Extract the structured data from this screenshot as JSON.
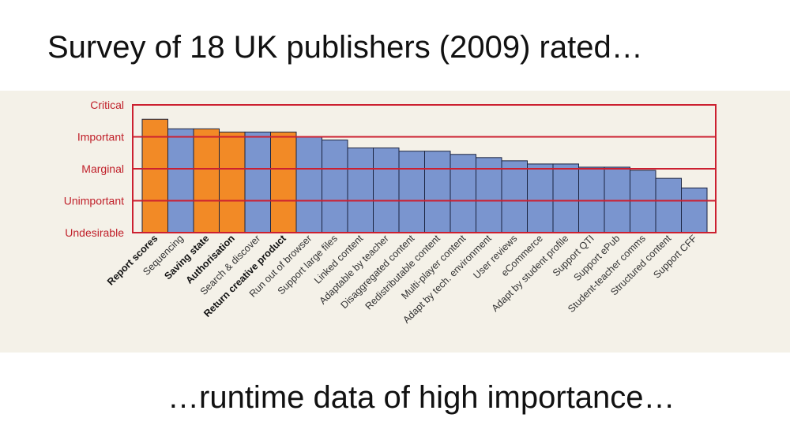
{
  "slide": {
    "title": "Survey of 18 UK publishers (2009) rated…",
    "footer": "…runtime data of high importance…"
  },
  "chart_data": {
    "type": "bar",
    "title": "",
    "xlabel": "",
    "ylabel": "",
    "ylim": [
      0,
      4
    ],
    "grid": true,
    "y_tick_labels": [
      "Undesirable",
      "Unimportant",
      "Marginal",
      "Important",
      "Critical"
    ],
    "categories": [
      "Report scores",
      "Sequencing",
      "Saving state",
      "Authorisation",
      "Search & discover",
      "Return creative product",
      "Run out of browser",
      "Support large files",
      "Linked content",
      "Adaptable by teacher",
      "Disaggregated content",
      "Redistributable content",
      "Multi-player content",
      "Adapt by tech. environment",
      "User reviews",
      "eCommerce",
      "Adapt by student profile",
      "Support QTI",
      "Support ePub",
      "Student-teacher comms",
      "Structured content",
      "Support CFF"
    ],
    "values": [
      3.55,
      3.25,
      3.25,
      3.15,
      3.15,
      3.15,
      3.0,
      2.9,
      2.65,
      2.65,
      2.55,
      2.55,
      2.45,
      2.35,
      2.25,
      2.15,
      2.15,
      2.05,
      2.05,
      1.95,
      1.7,
      1.4
    ],
    "highlighted": [
      "Report scores",
      "Saving state",
      "Authorisation",
      "Return creative product"
    ],
    "colors": {
      "highlight": "#f28a26",
      "normal": "#7a95cf",
      "frame": "#cc2030",
      "bar_stroke": "#1b2440",
      "label_red": "#c0202a",
      "panel": "#f4f1e8"
    }
  }
}
